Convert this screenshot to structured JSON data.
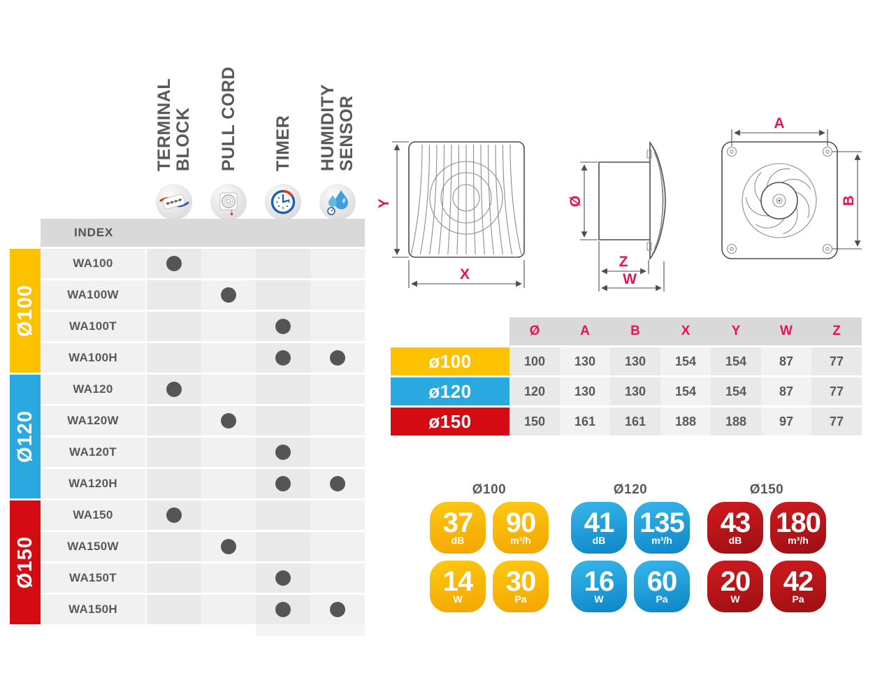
{
  "colors": {
    "accent_yellow": "#fcc200",
    "accent_blue": "#29a9e0",
    "accent_red": "#d40b12",
    "dimension_label_pink": "#e8134f",
    "text_dark_gray": "#58595b"
  },
  "feature_matrix": {
    "index_header": "INDEX",
    "columns": [
      {
        "id": "terminal-block",
        "lines": [
          "TERMINAL",
          "BLOCK"
        ]
      },
      {
        "id": "pull-cord",
        "lines": [
          "PULL CORD"
        ]
      },
      {
        "id": "timer",
        "lines": [
          "TIMER"
        ]
      },
      {
        "id": "humidity-sensor",
        "lines": [
          "HUMIDITY",
          "SENSOR"
        ]
      }
    ],
    "groups": [
      {
        "label": "Ø100",
        "theme": "yellow",
        "rows": [
          {
            "model": "WA100",
            "features": [
              1,
              0,
              0,
              0
            ]
          },
          {
            "model": "WA100W",
            "features": [
              0,
              1,
              0,
              0
            ]
          },
          {
            "model": "WA100T",
            "features": [
              0,
              0,
              1,
              0
            ]
          },
          {
            "model": "WA100H",
            "features": [
              0,
              0,
              1,
              1
            ]
          }
        ]
      },
      {
        "label": "Ø120",
        "theme": "blue",
        "rows": [
          {
            "model": "WA120",
            "features": [
              1,
              0,
              0,
              0
            ]
          },
          {
            "model": "WA120W",
            "features": [
              0,
              1,
              0,
              0
            ]
          },
          {
            "model": "WA120T",
            "features": [
              0,
              0,
              1,
              0
            ]
          },
          {
            "model": "WA120H",
            "features": [
              0,
              0,
              1,
              1
            ]
          }
        ]
      },
      {
        "label": "Ø150",
        "theme": "red",
        "rows": [
          {
            "model": "WA150",
            "features": [
              1,
              0,
              0,
              0
            ]
          },
          {
            "model": "WA150W",
            "features": [
              0,
              1,
              0,
              0
            ]
          },
          {
            "model": "WA150T",
            "features": [
              0,
              0,
              1,
              0
            ]
          },
          {
            "model": "WA150H",
            "features": [
              0,
              0,
              1,
              1
            ]
          }
        ]
      }
    ]
  },
  "diagrams": {
    "front": {
      "x_label": "X",
      "y_label": "Y"
    },
    "side": {
      "diameter_label": "Ø",
      "z_label": "Z",
      "w_label": "W"
    },
    "back": {
      "a_label": "A",
      "b_label": "B"
    }
  },
  "dimensions_table": {
    "column_headers": [
      "Ø",
      "A",
      "B",
      "X",
      "Y",
      "W",
      "Z"
    ],
    "rows": [
      {
        "label": "ø100",
        "theme": "yellow",
        "values": [
          "100",
          "130",
          "130",
          "154",
          "154",
          "87",
          "77"
        ]
      },
      {
        "label": "ø120",
        "theme": "blue",
        "values": [
          "120",
          "130",
          "130",
          "154",
          "154",
          "87",
          "77"
        ]
      },
      {
        "label": "ø150",
        "theme": "red",
        "values": [
          "150",
          "161",
          "161",
          "188",
          "188",
          "97",
          "77"
        ]
      }
    ]
  },
  "spec_badges": {
    "groups": [
      {
        "title": "Ø100",
        "theme": "yellow",
        "badges": [
          {
            "value": "37",
            "unit": "dB"
          },
          {
            "value": "90",
            "unit": "m³/h"
          },
          {
            "value": "14",
            "unit": "W"
          },
          {
            "value": "30",
            "unit": "Pa"
          }
        ]
      },
      {
        "title": "Ø120",
        "theme": "blue",
        "badges": [
          {
            "value": "41",
            "unit": "dB"
          },
          {
            "value": "135",
            "unit": "m³/h"
          },
          {
            "value": "16",
            "unit": "W"
          },
          {
            "value": "60",
            "unit": "Pa"
          }
        ]
      },
      {
        "title": "Ø150",
        "theme": "red",
        "badges": [
          {
            "value": "43",
            "unit": "dB"
          },
          {
            "value": "180",
            "unit": "m³/h"
          },
          {
            "value": "20",
            "unit": "W"
          },
          {
            "value": "42",
            "unit": "Pa"
          }
        ]
      }
    ]
  }
}
